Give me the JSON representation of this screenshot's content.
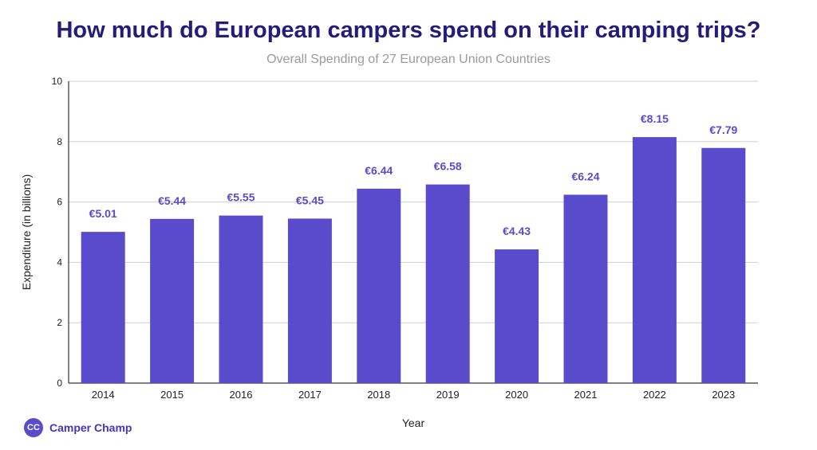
{
  "chart_data": {
    "type": "bar",
    "title": "How much do European campers spend on their camping trips?",
    "subtitle": "Overall Spending of 27 European Union Countries",
    "xlabel": "Year",
    "ylabel": "Expenditure (in billions)",
    "categories": [
      "2014",
      "2015",
      "2016",
      "2017",
      "2018",
      "2019",
      "2020",
      "2021",
      "2022",
      "2023"
    ],
    "values": [
      5.01,
      5.44,
      5.55,
      5.45,
      6.44,
      6.58,
      4.43,
      6.24,
      8.15,
      7.79
    ],
    "data_labels": [
      "€5.01",
      "€5.44",
      "€5.55",
      "€5.45",
      "€6.44",
      "€6.58",
      "€4.43",
      "€6.24",
      "€8.15",
      "€7.79"
    ],
    "yticks": [
      0,
      2,
      4,
      6,
      8,
      10
    ],
    "ylim": [
      0,
      10
    ],
    "grid": true,
    "bar_color": "#5a4bcc",
    "label_color": "#5a4bcc"
  },
  "brand": {
    "logo_text": "CC",
    "name": "Camper Champ"
  }
}
